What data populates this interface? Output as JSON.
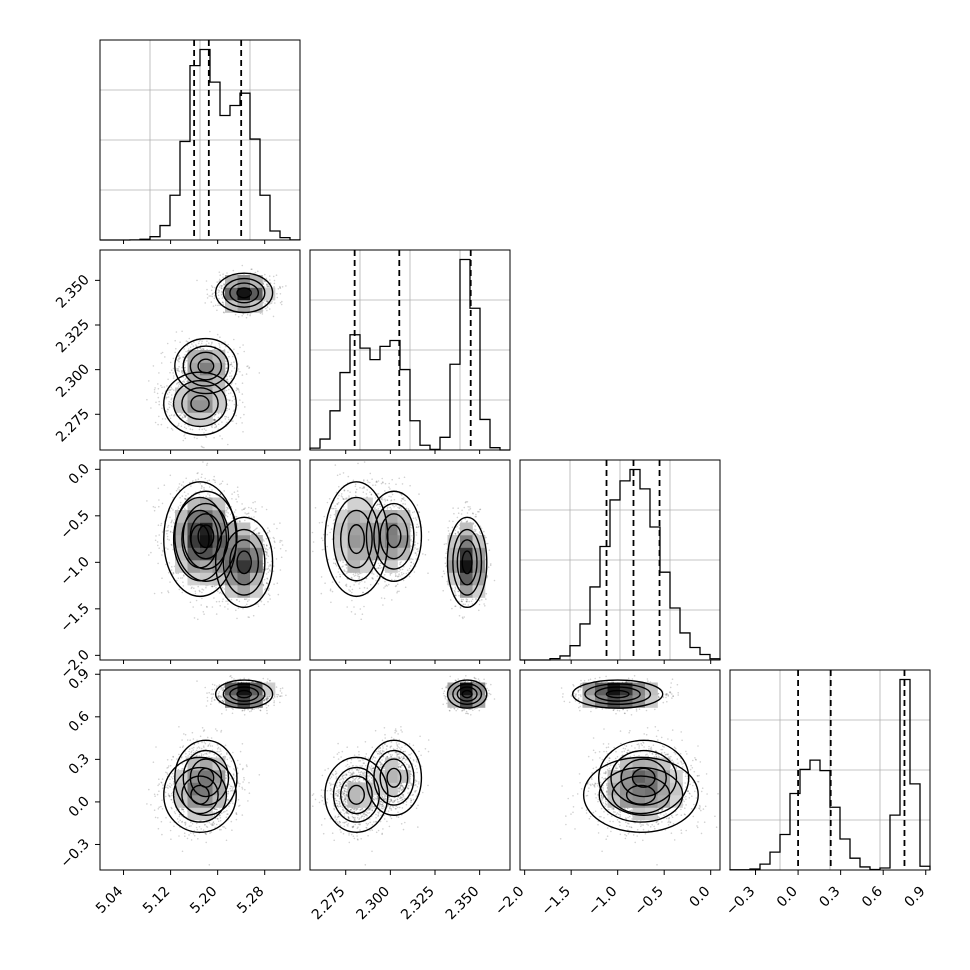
{
  "chart_data": {
    "type": "corner",
    "title": "",
    "parameters": [
      {
        "range": [
          5.0,
          5.34
        ],
        "ticks": [
          5.04,
          5.12,
          5.2,
          5.28
        ],
        "tick_labels": [
          "5.04",
          "5.12",
          "5.20",
          "5.28"
        ],
        "quantiles": [
          5.16,
          5.185,
          5.24
        ],
        "modes": [
          {
            "mean": 5.17,
            "sd": 0.028,
            "weight": 0.62
          },
          {
            "mean": 5.245,
            "sd": 0.022,
            "weight": 0.38
          }
        ]
      },
      {
        "range": [
          2.255,
          2.367
        ],
        "ticks": [
          2.275,
          2.3,
          2.325,
          2.35
        ],
        "tick_labels": [
          "2.275",
          "2.300",
          "2.325",
          "2.350"
        ],
        "quantiles": [
          2.28,
          2.305,
          2.345
        ],
        "modes": [
          {
            "mean": 2.28,
            "sd": 0.009,
            "weight": 0.33
          },
          {
            "mean": 2.302,
            "sd": 0.008,
            "weight": 0.32
          },
          {
            "mean": 2.343,
            "sd": 0.006,
            "weight": 0.35
          }
        ]
      },
      {
        "range": [
          -2.05,
          0.1
        ],
        "ticks": [
          -2.0,
          -1.5,
          -1.0,
          -0.5,
          0.0
        ],
        "tick_labels": [
          "−2.0",
          "−1.5",
          "−1.0",
          "−0.5",
          "0.0"
        ],
        "quantiles": [
          -1.12,
          -0.83,
          -0.55
        ],
        "modes": [
          {
            "mean": -0.83,
            "sd": 0.28,
            "weight": 1.0
          }
        ]
      },
      {
        "range": [
          -0.48,
          0.93
        ],
        "ticks": [
          -0.3,
          0.0,
          0.3,
          0.6,
          0.9
        ],
        "tick_labels": [
          "−0.3",
          "0.0",
          "0.3",
          "0.6",
          "0.9"
        ],
        "quantiles": [
          0.0,
          0.23,
          0.75
        ],
        "modes": [
          {
            "mean": 0.1,
            "sd": 0.13,
            "weight": 0.65
          },
          {
            "mean": 0.76,
            "sd": 0.045,
            "weight": 0.35
          }
        ]
      }
    ],
    "histogram_bins": 20,
    "contour_levels": 4,
    "grid": true,
    "colors": {
      "line": "#000000",
      "density": "#000000",
      "grid": "#b0b0b0",
      "background": "#ffffff"
    }
  }
}
